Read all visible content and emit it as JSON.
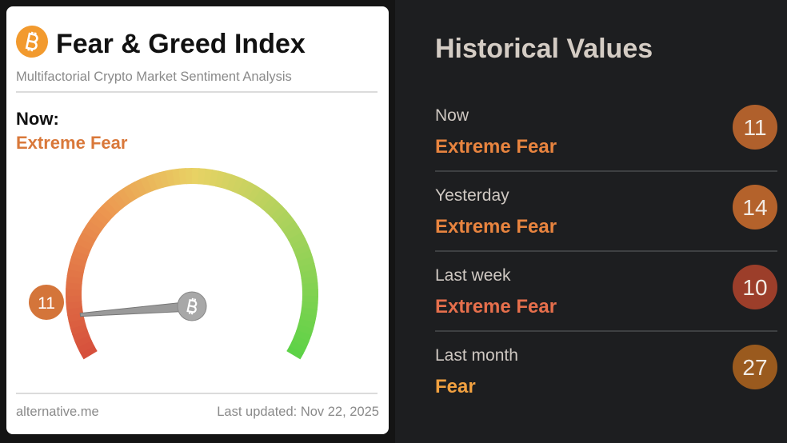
{
  "header": {
    "title": "Fear & Greed Index",
    "subtitle": "Multifactorial Crypto Market Sentiment Analysis"
  },
  "now": {
    "label": "Now:",
    "status": "Extreme Fear",
    "status_color": "#d9783a"
  },
  "gauge": {
    "value": 11,
    "range": [
      0,
      100
    ],
    "color": "#d4753a"
  },
  "footer": {
    "source": "alternative.me",
    "updated": "Last updated: Nov 22, 2025"
  },
  "historical": {
    "title": "Historical Values",
    "rows": [
      {
        "label": "Now",
        "status": "Extreme Fear",
        "value": 11,
        "status_color": "#e8843f",
        "color": "#b0602c"
      },
      {
        "label": "Yesterday",
        "status": "Extreme Fear",
        "value": 14,
        "status_color": "#e8843f",
        "color": "#b4622b"
      },
      {
        "label": "Last week",
        "status": "Extreme Fear",
        "value": 10,
        "status_color": "#e66f4c",
        "color": "#9c3e2a"
      },
      {
        "label": "Last month",
        "status": "Fear",
        "value": 27,
        "status_color": "#f0a040",
        "color": "#9a5a1e"
      }
    ]
  }
}
